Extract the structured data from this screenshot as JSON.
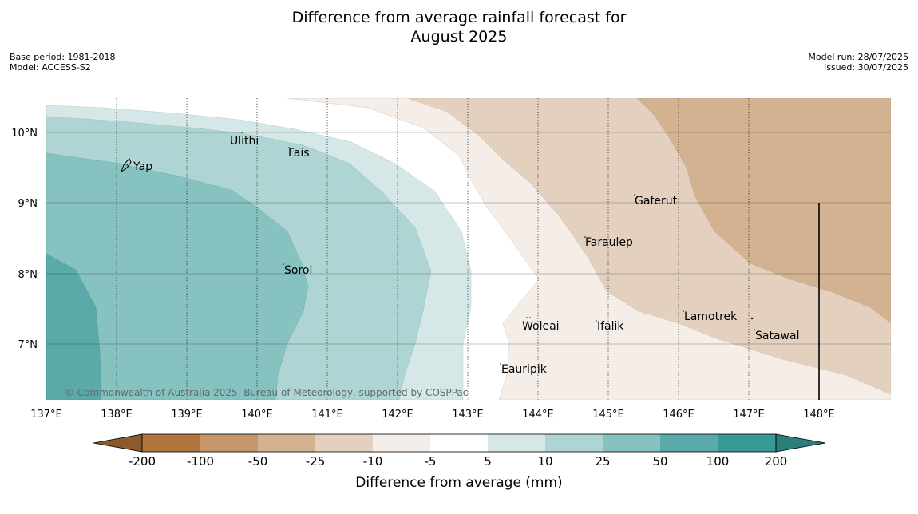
{
  "title_line1": "Difference from average rainfall forecast for",
  "title_line2": "August 2025",
  "meta_left": {
    "base_period": "Base period: 1981-2018",
    "model": "Model: ACCESS-S2"
  },
  "meta_right": {
    "model_run": "Model run: 28/07/2025",
    "issued": "Issued: 30/07/2025"
  },
  "credit": "© Commonwealth of Australia 2025, Bureau of Meteorology, supported by COSPPac",
  "lat_ticks": [
    "10°N",
    "9°N",
    "8°N",
    "7°N"
  ],
  "lon_ticks": [
    "137°E",
    "138°E",
    "139°E",
    "140°E",
    "141°E",
    "142°E",
    "143°E",
    "144°E",
    "145°E",
    "146°E",
    "147°E",
    "148°E"
  ],
  "places": [
    {
      "name": "Yap",
      "lon": 138.2,
      "lat": 9.53
    },
    {
      "name": "Ulithi",
      "lon": 139.72,
      "lat": 9.9
    },
    {
      "name": "Fais",
      "lon": 140.52,
      "lat": 9.76
    },
    {
      "name": "Sorol",
      "lon": 140.4,
      "lat": 8.13
    },
    {
      "name": "Gaferut",
      "lon": 145.38,
      "lat": 9.23
    },
    {
      "name": "Faraulep",
      "lon": 144.6,
      "lat": 8.55
    },
    {
      "name": "Woleai",
      "lon": 143.9,
      "lat": 7.36
    },
    {
      "name": "Ifalik",
      "lon": 144.45,
      "lat": 7.25
    },
    {
      "name": "Lamotrek",
      "lon": 146.33,
      "lat": 7.5
    },
    {
      "name": "Satawal",
      "lon": 147.03,
      "lat": 7.35
    },
    {
      "name": "Eauripik",
      "lon": 143.05,
      "lat": 6.7
    }
  ],
  "colorbar": {
    "title": "Difference from average (mm)",
    "ticks": [
      "-200",
      "-100",
      "-50",
      "-25",
      "-10",
      "-5",
      "5",
      "10",
      "25",
      "50",
      "100",
      "200"
    ],
    "colors": [
      "#8c5a2b",
      "#b1763d",
      "#c5956b",
      "#d3b291",
      "#e3d0bf",
      "#f4ede8",
      "#ffffff",
      "#d5e8e7",
      "#aed5d4",
      "#86c2bf",
      "#5aaaa9",
      "#379a97",
      "#2a7e7c"
    ]
  }
}
